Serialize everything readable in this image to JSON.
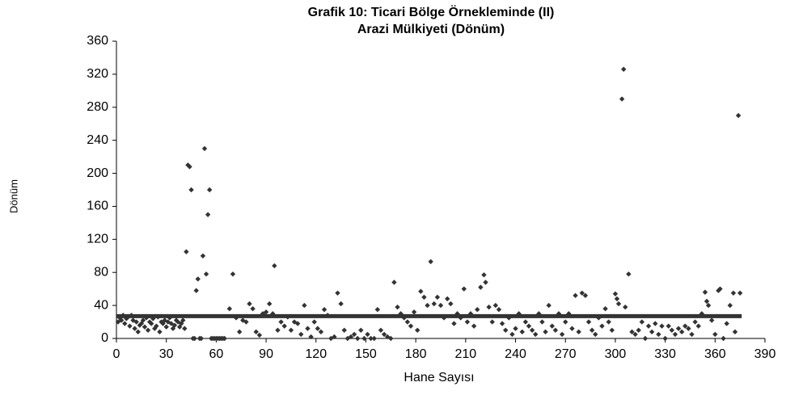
{
  "chart_data": {
    "type": "scatter",
    "title": "Grafik 10: Ticari Bölge Örnekleminde (II)",
    "subtitle": "Arazi Mülkiyeti (Dönüm)",
    "xlabel": "Hane Sayısı",
    "ylabel": "Dönüm",
    "xlim": [
      0,
      390
    ],
    "xticks": [
      0,
      30,
      60,
      90,
      120,
      150,
      180,
      210,
      240,
      270,
      300,
      330,
      360,
      390
    ],
    "ylim": [
      0,
      360
    ],
    "yticks": [
      0,
      40,
      80,
      120,
      160,
      200,
      240,
      280,
      320,
      360
    ],
    "series": [
      {
        "type": "scatter",
        "color": "#333333",
        "x": [
          1,
          2,
          3,
          4,
          5,
          6,
          7,
          8,
          9,
          10,
          11,
          12,
          13,
          14,
          15,
          16,
          17,
          18,
          19,
          20,
          21,
          22,
          23,
          24,
          25,
          26,
          27,
          28,
          29,
          30,
          31,
          32,
          33,
          34,
          35,
          36,
          37,
          38,
          39,
          40,
          41,
          42,
          43,
          44,
          45,
          46,
          47,
          48,
          49,
          50,
          51,
          52,
          53,
          54,
          55,
          56,
          57,
          58,
          59,
          60,
          61,
          62,
          63,
          64,
          65,
          68,
          70,
          72,
          74,
          76,
          78,
          80,
          82,
          84,
          86,
          88,
          90,
          92,
          94,
          95,
          97,
          99,
          101,
          103,
          105,
          107,
          109,
          111,
          113,
          115,
          117,
          119,
          121,
          123,
          125,
          127,
          129,
          131,
          133,
          135,
          137,
          139,
          141,
          143,
          145,
          147,
          149,
          151,
          153,
          155,
          157,
          159,
          161,
          163,
          165,
          167,
          169,
          171,
          173,
          175,
          177,
          179,
          181,
          183,
          185,
          187,
          189,
          191,
          193,
          195,
          197,
          199,
          201,
          203,
          205,
          207,
          209,
          211,
          213,
          215,
          217,
          219,
          221,
          222,
          224,
          226,
          228,
          230,
          232,
          234,
          236,
          238,
          240,
          242,
          244,
          246,
          248,
          250,
          252,
          254,
          256,
          258,
          260,
          262,
          264,
          266,
          268,
          270,
          272,
          274,
          276,
          278,
          280,
          282,
          284,
          286,
          288,
          290,
          292,
          294,
          296,
          298,
          300,
          301,
          302,
          304,
          305,
          306,
          308,
          310,
          312,
          314,
          316,
          318,
          320,
          322,
          324,
          326,
          328,
          330,
          332,
          334,
          336,
          338,
          340,
          342,
          344,
          346,
          348,
          350,
          352,
          354,
          355,
          356,
          358,
          360,
          362,
          363,
          365,
          367,
          369,
          371,
          372,
          374,
          375
        ],
        "values": [
          20,
          25,
          22,
          28,
          18,
          24,
          26,
          15,
          28,
          22,
          12,
          20,
          8,
          16,
          18,
          22,
          14,
          25,
          10,
          20,
          18,
          24,
          12,
          15,
          26,
          8,
          20,
          18,
          22,
          14,
          20,
          25,
          18,
          12,
          16,
          22,
          20,
          14,
          18,
          22,
          12,
          105,
          210,
          208,
          180,
          0,
          0,
          58,
          72,
          0,
          0,
          100,
          230,
          78,
          150,
          180,
          0,
          0,
          0,
          0,
          0,
          0,
          0,
          0,
          0,
          36,
          78,
          25,
          8,
          22,
          20,
          42,
          36,
          8,
          4,
          30,
          32,
          42,
          30,
          88,
          10,
          20,
          15,
          26,
          10,
          20,
          18,
          5,
          40,
          12,
          2,
          20,
          12,
          8,
          35,
          28,
          0,
          2,
          55,
          42,
          10,
          0,
          2,
          5,
          0,
          10,
          0,
          5,
          0,
          0,
          35,
          10,
          5,
          2,
          0,
          68,
          38,
          30,
          25,
          20,
          15,
          32,
          10,
          57,
          50,
          40,
          93,
          42,
          50,
          40,
          25,
          48,
          42,
          18,
          30,
          25,
          60,
          20,
          30,
          15,
          35,
          62,
          77,
          68,
          38,
          20,
          40,
          35,
          18,
          10,
          25,
          5,
          12,
          30,
          8,
          20,
          15,
          10,
          5,
          30,
          20,
          8,
          40,
          15,
          10,
          30,
          5,
          20,
          30,
          12,
          52,
          8,
          55,
          52,
          20,
          10,
          5,
          25,
          15,
          36,
          20,
          10,
          54,
          48,
          42,
          290,
          326,
          38,
          78,
          8,
          5,
          10,
          20,
          0,
          15,
          8,
          18,
          5,
          15,
          0,
          15,
          10,
          5,
          12,
          8,
          15,
          12,
          5,
          20,
          15,
          30,
          56,
          45,
          40,
          22,
          5,
          58,
          60,
          0,
          18,
          40,
          55,
          8,
          270,
          55
        ]
      },
      {
        "type": "line",
        "color": "#333333",
        "x": [
          0,
          376
        ],
        "values": [
          27,
          27
        ]
      }
    ]
  }
}
